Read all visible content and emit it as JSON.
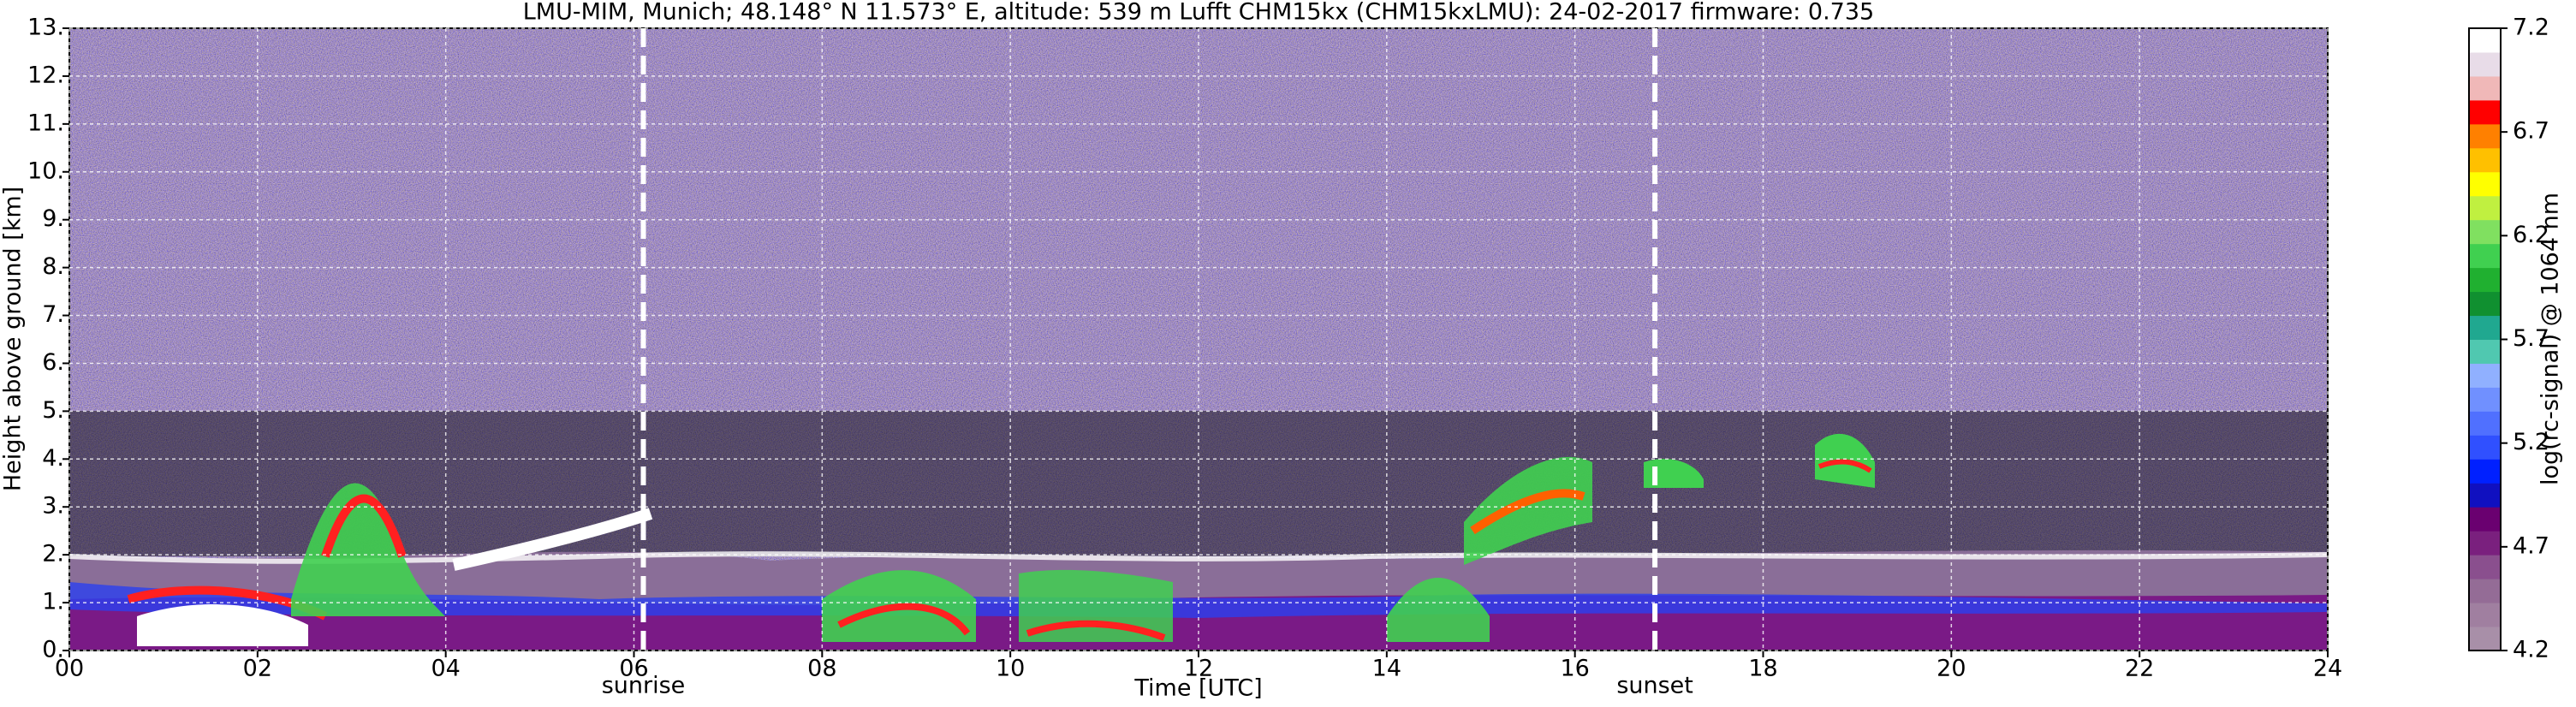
{
  "chart_data": {
    "type": "heatmap",
    "title": "LMU-MIM, Munich; 48.148° N 11.573° E, altitude: 539 m    Lufft CHM15kx (CHM15kxLMU): 24-02-2017    firmware: 0.735",
    "xlabel": "Time [UTC]",
    "ylabel": "Height above ground [km]",
    "xlim": [
      0,
      24
    ],
    "xticks": [
      {
        "value": 0,
        "label": "00"
      },
      {
        "value": 2,
        "label": "02"
      },
      {
        "value": 4,
        "label": "04"
      },
      {
        "value": 6,
        "label": "06"
      },
      {
        "value": 8,
        "label": "08"
      },
      10,
      12,
      14,
      16,
      18,
      20,
      22,
      24
    ],
    "ylim": [
      0,
      13
    ],
    "yticks": [
      {
        "value": 0,
        "label": "0."
      },
      {
        "value": 1,
        "label": "1."
      },
      {
        "value": 2,
        "label": "2."
      },
      {
        "value": 3,
        "label": "3."
      },
      {
        "value": 4,
        "label": "4."
      },
      {
        "value": 5,
        "label": "5."
      },
      {
        "value": 6,
        "label": "6."
      },
      {
        "value": 7,
        "label": "7."
      },
      {
        "value": 8,
        "label": "8."
      },
      {
        "value": 9,
        "label": "9."
      },
      {
        "value": 10,
        "label": "10."
      },
      {
        "value": 11,
        "label": "11."
      },
      {
        "value": 12,
        "label": "12."
      },
      {
        "value": 13,
        "label": "13."
      }
    ],
    "grid": true,
    "annotations": [
      {
        "text": "sunrise",
        "x": 6.1
      },
      {
        "text": "sunset",
        "x": 16.85
      }
    ],
    "colorbar": {
      "label": "log(rc-signal) @ 1064 nm",
      "lim": [
        4.2,
        7.2
      ],
      "ticks": [
        4.2,
        4.7,
        5.2,
        5.7,
        6.2,
        6.7,
        7.2
      ],
      "colors": [
        "#a88fa8",
        "#a07fa0",
        "#946c96",
        "#8a4f8e",
        "#7a207e",
        "#6a0070",
        "#1010c0",
        "#0020ff",
        "#3050ff",
        "#5070ff",
        "#7090ff",
        "#90b0ff",
        "#50c8b0",
        "#20a890",
        "#109030",
        "#20b030",
        "#40d050",
        "#80e060",
        "#c0f040",
        "#ffff00",
        "#ffc000",
        "#ff8000",
        "#ff0000",
        "#f0b8b8",
        "#e8dce8",
        "#ffffff"
      ]
    }
  }
}
